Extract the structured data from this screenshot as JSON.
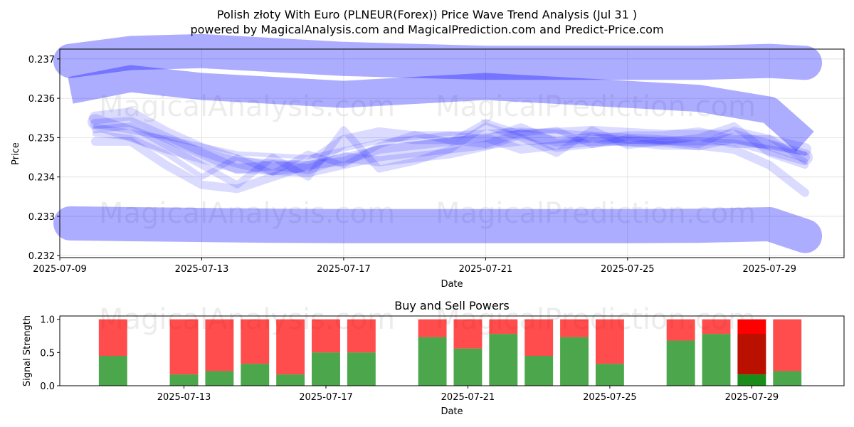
{
  "title_line1": "Polish złoty With Euro (PLNEUR(Forex)) Price Wave Trend Analysis (Jul 31 )",
  "title_line2": "powered by MagicalAnalysis.com and MagicalPrediction.com and Predict-Price.com",
  "watermarks": [
    "MagicalAnalysis.com",
    "MagicalPrediction.com"
  ],
  "colors": {
    "wave": "#0000ff",
    "buy": "#008000",
    "sell": "#ff0000",
    "background": "#ffffff"
  },
  "chart_data": [
    {
      "type": "area",
      "name": "price-wave",
      "xlabel": "Date",
      "ylabel": "Price",
      "x_ticks": [
        "2025-07-09",
        "2025-07-13",
        "2025-07-17",
        "2025-07-21",
        "2025-07-25",
        "2025-07-29"
      ],
      "y_ticks": [
        0.232,
        0.233,
        0.234,
        0.235,
        0.236,
        0.237
      ],
      "ylim": [
        0.23195,
        0.23725
      ],
      "xlim_days": [
        9,
        31.1
      ],
      "grid": true,
      "bands": [
        {
          "name": "upper-band",
          "x": [
            9.3,
            11,
            13,
            15,
            17,
            19,
            21,
            23,
            25,
            27,
            29,
            30
          ],
          "y": [
            0.23695,
            0.23715,
            0.2372,
            0.2371,
            0.237,
            0.23695,
            0.2369,
            0.2369,
            0.2369,
            0.2369,
            0.23695,
            0.2369
          ]
        },
        {
          "name": "lower-band",
          "x": [
            9.3,
            11,
            13,
            15,
            17,
            19,
            21,
            23,
            25,
            27,
            29,
            30
          ],
          "y": [
            0.23282,
            0.2328,
            0.23278,
            0.23276,
            0.23275,
            0.23275,
            0.23275,
            0.23275,
            0.23275,
            0.23276,
            0.2328,
            0.2325
          ]
        },
        {
          "name": "mid-band",
          "x": [
            9.3,
            11,
            13,
            15,
            17,
            19,
            21,
            23,
            25,
            27,
            29,
            30
          ],
          "y": [
            0.2362,
            0.2365,
            0.2363,
            0.2362,
            0.2361,
            0.2362,
            0.2363,
            0.2362,
            0.2361,
            0.236,
            0.2357,
            0.2349
          ]
        }
      ],
      "waves": [
        {
          "x": [
            10,
            11,
            12,
            13,
            14,
            15,
            16,
            17,
            18,
            19,
            20,
            21,
            22,
            23,
            24,
            25,
            26,
            27,
            28,
            29,
            30
          ],
          "y": [
            0.23535,
            0.2354,
            0.235,
            0.2346,
            0.2342,
            0.2343,
            0.2342,
            0.2345,
            0.2344,
            0.2345,
            0.2346,
            0.2348,
            0.2351,
            0.2349,
            0.235,
            0.2349,
            0.2349,
            0.2348,
            0.235,
            0.2348,
            0.2345
          ]
        },
        {
          "x": [
            10,
            11,
            12,
            13,
            14,
            15,
            16,
            17,
            18,
            19,
            20,
            21,
            22,
            23,
            24,
            25,
            26,
            27,
            28,
            29,
            30
          ],
          "y": [
            0.2352,
            0.2353,
            0.2348,
            0.2343,
            0.2338,
            0.2345,
            0.234,
            0.2352,
            0.2342,
            0.2344,
            0.2347,
            0.2353,
            0.235,
            0.2346,
            0.2352,
            0.2348,
            0.2349,
            0.235,
            0.2353,
            0.2346,
            0.2343
          ]
        },
        {
          "x": [
            10,
            11,
            12,
            13,
            14,
            15,
            16,
            17,
            18,
            19,
            20,
            21,
            22,
            23,
            24,
            25,
            26,
            27,
            28,
            29,
            30
          ],
          "y": [
            0.2351,
            0.235,
            0.2346,
            0.234,
            0.2345,
            0.2341,
            0.2346,
            0.2343,
            0.2348,
            0.2351,
            0.2349,
            0.2354,
            0.2351,
            0.2352,
            0.2348,
            0.235,
            0.2349,
            0.2348,
            0.2352,
            0.235,
            0.2344
          ]
        },
        {
          "x": [
            10,
            11,
            12,
            13,
            14,
            15,
            16,
            17,
            18,
            19,
            20,
            21,
            22,
            23,
            24,
            25,
            26,
            27,
            28,
            29,
            30
          ],
          "y": [
            0.2355,
            0.2356,
            0.2351,
            0.2347,
            0.2344,
            0.2342,
            0.2343,
            0.2349,
            0.2351,
            0.235,
            0.235,
            0.2349,
            0.2352,
            0.2348,
            0.2349,
            0.235,
            0.235,
            0.2351,
            0.2349,
            0.2349,
            0.2347
          ]
        },
        {
          "x": [
            10,
            11,
            12,
            13,
            14,
            15,
            16,
            17,
            18,
            19,
            20,
            21,
            22,
            23,
            24,
            25,
            26,
            27,
            28,
            29,
            30
          ],
          "y": [
            0.2349,
            0.2349,
            0.2343,
            0.2338,
            0.2337,
            0.234,
            0.2343,
            0.2344,
            0.2347,
            0.2348,
            0.2349,
            0.235,
            0.2347,
            0.2348,
            0.2349,
            0.2349,
            0.2348,
            0.2348,
            0.2347,
            0.2343,
            0.2336
          ]
        },
        {
          "x": [
            10,
            12,
            14,
            16,
            18,
            20,
            22,
            24,
            26,
            28,
            30
          ],
          "y": [
            0.2354,
            0.2348,
            0.2343,
            0.2342,
            0.2346,
            0.2348,
            0.235,
            0.2351,
            0.235,
            0.235,
            0.2345
          ]
        },
        {
          "x": [
            10,
            12,
            14,
            16,
            18,
            20,
            22,
            24,
            26,
            28,
            30
          ],
          "y": [
            0.2353,
            0.235,
            0.2346,
            0.2345,
            0.2349,
            0.2351,
            0.2352,
            0.2351,
            0.235,
            0.2349,
            0.2346
          ]
        }
      ]
    },
    {
      "type": "bar",
      "name": "buy-sell-powers",
      "title": "Buy and Sell Powers",
      "xlabel": "Date",
      "ylabel": "Signal Strength",
      "x_ticks": [
        "2025-07-13",
        "2025-07-17",
        "2025-07-21",
        "2025-07-25",
        "2025-07-29"
      ],
      "y_ticks": [
        "0.0",
        "0.5",
        "1.0"
      ],
      "ylim": [
        0,
        1.05
      ],
      "xlim_days": [
        9.5,
        31.6
      ],
      "series": [
        {
          "name": "Buy",
          "values": [
            0.45,
            0.17,
            0.22,
            0.33,
            0.17,
            0.5,
            0.5,
            0.73,
            0.56,
            0.78,
            0.45,
            0.73,
            0.33,
            0.68,
            0.78,
            0.17,
            0.22
          ]
        },
        {
          "name": "Sell",
          "values": [
            0.55,
            0.83,
            0.78,
            0.67,
            0.83,
            0.5,
            0.5,
            0.27,
            0.44,
            0.22,
            0.55,
            0.27,
            0.67,
            0.32,
            0.22,
            0.83,
            0.78
          ]
        }
      ],
      "days": [
        11,
        13,
        14,
        15,
        16,
        17,
        18,
        20,
        21,
        22,
        23,
        24,
        25,
        27,
        28,
        29,
        30
      ],
      "categories": [
        "2025-07-11",
        "2025-07-13",
        "2025-07-14",
        "2025-07-15",
        "2025-07-16",
        "2025-07-17",
        "2025-07-18",
        "2025-07-20",
        "2025-07-21",
        "2025-07-22",
        "2025-07-23",
        "2025-07-24",
        "2025-07-25",
        "2025-07-27",
        "2025-07-28",
        "2025-07-29",
        "2025-07-30"
      ],
      "highlighted": "2025-07-29"
    }
  ]
}
